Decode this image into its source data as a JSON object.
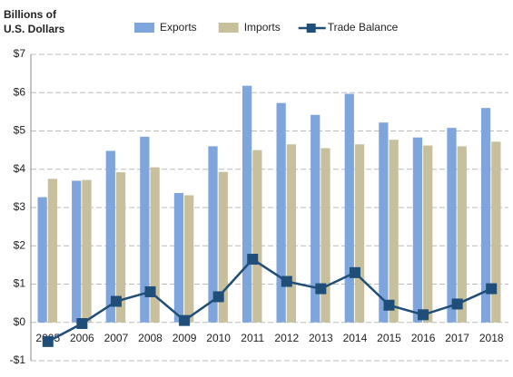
{
  "chart_data": {
    "type": "bar_line",
    "y_label": [
      "Billions of",
      "U.S. Dollars"
    ],
    "categories": [
      "2005",
      "2006",
      "2007",
      "2008",
      "2009",
      "2010",
      "2011",
      "2012",
      "2013",
      "2014",
      "2015",
      "2016",
      "2017",
      "2018"
    ],
    "series": [
      {
        "name": "Exports",
        "type": "bar",
        "color": "#7fa6dc",
        "values": [
          3.27,
          3.7,
          4.48,
          4.85,
          3.38,
          4.6,
          6.18,
          5.73,
          5.42,
          5.97,
          5.22,
          4.83,
          5.08,
          5.6
        ]
      },
      {
        "name": "Imports",
        "type": "bar",
        "color": "#c8bf9d",
        "values": [
          3.75,
          3.72,
          3.92,
          4.05,
          3.32,
          3.93,
          4.5,
          4.65,
          4.55,
          4.65,
          4.77,
          4.62,
          4.6,
          4.72
        ]
      },
      {
        "name": "Trade Balance",
        "type": "line",
        "color": "#1f4e79",
        "values": [
          -0.5,
          -0.03,
          0.55,
          0.8,
          0.05,
          0.67,
          1.65,
          1.07,
          0.88,
          1.3,
          0.45,
          0.2,
          0.48,
          0.88
        ]
      }
    ],
    "ylim": [
      -1,
      7
    ],
    "yticks": [
      {
        "value": -1,
        "label": "-$1"
      },
      {
        "value": 0,
        "label": "$0"
      },
      {
        "value": 1,
        "label": "$1"
      },
      {
        "value": 2,
        "label": "$2"
      },
      {
        "value": 3,
        "label": "$3"
      },
      {
        "value": 4,
        "label": "$4"
      },
      {
        "value": 5,
        "label": "$5"
      },
      {
        "value": 6,
        "label": "$6"
      },
      {
        "value": 7,
        "label": "$7"
      }
    ],
    "grid": true
  }
}
